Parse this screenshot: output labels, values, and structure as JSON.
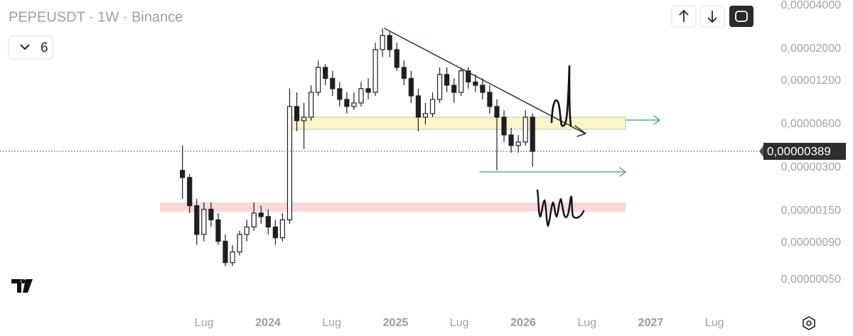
{
  "chart_data": {
    "type": "candlestick",
    "title": "PEPEUSDT · 1W · Binance",
    "interval_button": "6",
    "log_scale": true,
    "color": "#1f1f1f",
    "last_price": {
      "value": 3.89e-06,
      "label": "0,00000389"
    },
    "xlim": [
      2021.9,
      2027.833
    ],
    "ylim": [
      2.95e-07,
      4.38e-05
    ],
    "xticks": [
      {
        "value": 2023.5,
        "label": "Lug"
      },
      2024,
      {
        "value": 2024.5,
        "label": "Lug"
      },
      2025,
      {
        "value": 2025.5,
        "label": "Lug"
      },
      2026,
      {
        "value": 2026.5,
        "label": "Lug"
      },
      2027,
      {
        "value": 2027.5,
        "label": "Lug"
      }
    ],
    "yticks": [
      {
        "value": 4e-05,
        "label": "0,00004000"
      },
      {
        "value": 2e-05,
        "label": "0,00002000"
      },
      {
        "value": 1.2e-05,
        "label": "0,00001200"
      },
      {
        "value": 6e-06,
        "label": "0,00000600"
      },
      {
        "value": 3e-06,
        "label": "0,00000300"
      },
      {
        "value": 1.5e-06,
        "label": "0,00000150"
      },
      {
        "value": 9e-07,
        "label": "0,00000090"
      },
      {
        "value": 5e-07,
        "label": "0,00000050"
      }
    ],
    "x": [
      2023.33,
      2023.386,
      2023.442,
      2023.498,
      2023.554,
      2023.61,
      2023.666,
      2023.722,
      2023.778,
      2023.834,
      2023.89,
      2023.946,
      2024.002,
      2024.058,
      2024.114,
      2024.17,
      2024.226,
      2024.282,
      2024.338,
      2024.394,
      2024.45,
      2024.506,
      2024.562,
      2024.618,
      2024.674,
      2024.73,
      2024.786,
      2024.842,
      2024.898,
      2024.954,
      2025.01,
      2025.066,
      2025.122,
      2025.178,
      2025.234,
      2025.29,
      2025.346,
      2025.402,
      2025.458,
      2025.514,
      2025.57,
      2025.626,
      2025.682,
      2025.738,
      2025.794,
      2025.85,
      2025.906,
      2025.962,
      2026.018,
      2026.074
    ],
    "open": [
      2.87e-06,
      2.56e-06,
      1.63e-06,
      1.03e-06,
      1.54e-06,
      1.3e-06,
      9.22e-07,
      6.56e-07,
      7.78e-07,
      1.03e-06,
      1.16e-06,
      1.45e-06,
      1.37e-06,
      1.16e-06,
      9.76e-07,
      1.3e-06,
      7.97e-06,
      6.35e-06,
      6.72e-06,
      1e-05,
      1.49e-05,
      1.25e-05,
      1.06e-05,
      8.93e-06,
      7.97e-06,
      8.44e-06,
      1.06e-05,
      1e-05,
      1.98e-05,
      2.48e-05,
      1.98e-05,
      1.49e-05,
      1.25e-05,
      9.45e-06,
      6.72e-06,
      7.12e-06,
      8.93e-06,
      1.33e-05,
      1.12e-05,
      1e-05,
      1.41e-05,
      1.18e-05,
      1.12e-05,
      1e-05,
      7.97e-06,
      6.72e-06,
      5.06e-06,
      4.27e-06,
      4.52e-06,
      6.72e-06
    ],
    "high": [
      4.27e-06,
      2.71e-06,
      1.82e-06,
      1.72e-06,
      1.72e-06,
      1.45e-06,
      1.03e-06,
      8.71e-07,
      1.09e-06,
      1.3e-06,
      1.72e-06,
      1.63e-06,
      1.54e-06,
      1.3e-06,
      1.45e-06,
      1.06e-05,
      1e-05,
      8.44e-06,
      1.12e-05,
      1.67e-05,
      1.57e-05,
      1.41e-05,
      1.18e-05,
      1e-05,
      1e-05,
      1.18e-05,
      1.25e-05,
      2.21e-05,
      2.78e-05,
      2.63e-05,
      2.21e-05,
      1.67e-05,
      1.41e-05,
      1.06e-05,
      8.44e-06,
      1e-05,
      1.49e-05,
      1.49e-05,
      1.25e-05,
      1.49e-05,
      1.49e-05,
      1.33e-05,
      1.25e-05,
      1.12e-05,
      8.93e-06,
      7.53e-06,
      5.67e-06,
      5.06e-06,
      7.53e-06,
      7.12e-06
    ],
    "low": [
      1.82e-06,
      1.45e-06,
      8.71e-07,
      9.22e-07,
      1.16e-06,
      8.71e-07,
      6.2e-07,
      6.2e-07,
      7.35e-07,
      9.22e-07,
      1.09e-06,
      1.22e-06,
      1.03e-06,
      8.71e-07,
      9.22e-07,
      1.22e-06,
      5.36e-06,
      4.03e-06,
      6.35e-06,
      9.45e-06,
      1.12e-05,
      9.45e-06,
      7.97e-06,
      7.12e-06,
      7.53e-06,
      7.97e-06,
      8.93e-06,
      9.45e-06,
      1.76e-05,
      1.76e-05,
      1.41e-05,
      1.12e-05,
      8.44e-06,
      5.36e-06,
      6e-06,
      6.72e-06,
      8.44e-06,
      1e-05,
      8.44e-06,
      9.45e-06,
      1.06e-05,
      1e-05,
      8.93e-06,
      7.12e-06,
      2.87e-06,
      4.52e-06,
      3.81e-06,
      3.81e-06,
      4.27e-06,
      3.04e-06
    ],
    "close": [
      2.56e-06,
      1.63e-06,
      1.03e-06,
      1.54e-06,
      1.3e-06,
      9.22e-07,
      6.56e-07,
      7.78e-07,
      1.03e-06,
      1.16e-06,
      1.45e-06,
      1.37e-06,
      1.16e-06,
      9.76e-07,
      1.3e-06,
      7.97e-06,
      6.35e-06,
      6.72e-06,
      1e-05,
      1.49e-05,
      1.25e-05,
      1.06e-05,
      8.93e-06,
      7.97e-06,
      8.44e-06,
      1.06e-05,
      1e-05,
      1.98e-05,
      2.48e-05,
      1.98e-05,
      1.49e-05,
      1.25e-05,
      9.45e-06,
      6.72e-06,
      7.12e-06,
      8.93e-06,
      1.33e-05,
      1.12e-05,
      1e-05,
      1.41e-05,
      1.18e-05,
      1.12e-05,
      1e-05,
      7.97e-06,
      6.72e-06,
      5.06e-06,
      4.27e-06,
      4.52e-06,
      6.72e-06,
      3.89e-06
    ]
  }
}
